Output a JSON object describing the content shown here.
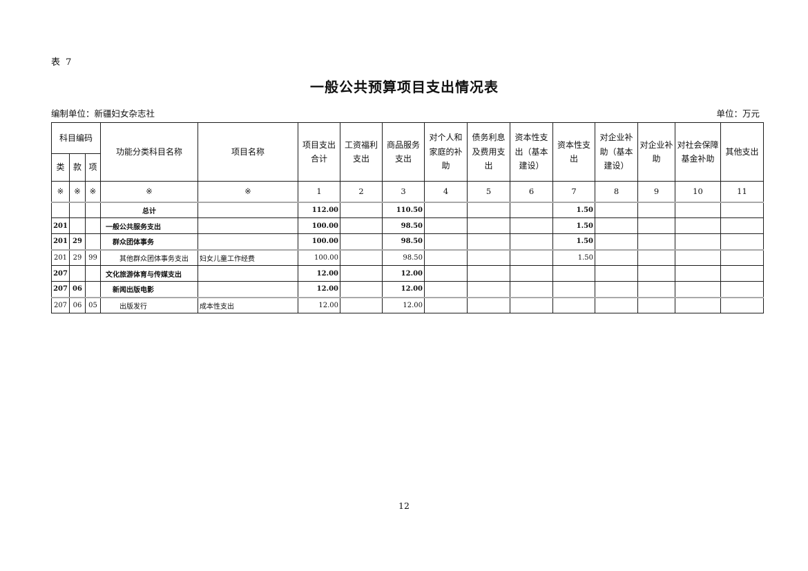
{
  "page": {
    "table_label": "表 7",
    "title": "一般公共预算项目支出情况表",
    "prepared_by": "编制单位：新疆妇女杂志社",
    "unit_note": "单位：万元",
    "page_number": "12"
  },
  "table": {
    "header": {
      "subject_code": "科目编码",
      "code_cols": [
        "类",
        "款",
        "项"
      ],
      "function_name": "功能分类科目名称",
      "project_name": "项目名称",
      "metric_cols": [
        "项目支出合计",
        "工资福利支出",
        "商品服务支出",
        "对个人和家庭的补助",
        "债务利息及费用支出",
        "资本性支出（基本建设）",
        "资本性支出",
        "对企业补助（基本建设）",
        "对企业补助",
        "对社会保障基金补助",
        "其他支出"
      ]
    },
    "marker_row": [
      "※",
      "※",
      "※",
      "※",
      "※",
      "1",
      "2",
      "3",
      "4",
      "5",
      "6",
      "7",
      "8",
      "9",
      "10",
      "11"
    ],
    "rows": [
      {
        "bold": true,
        "center": true,
        "indent": 0,
        "separator": true,
        "cells": [
          "",
          "",
          "",
          "总计",
          "",
          "112.00",
          "",
          "110.50",
          "",
          "",
          "",
          "1.50",
          "",
          "",
          "",
          ""
        ]
      },
      {
        "bold": true,
        "center": false,
        "indent": 0,
        "separator": false,
        "cells": [
          "201",
          "",
          "",
          "一般公共服务支出",
          "",
          "100.00",
          "",
          "98.50",
          "",
          "",
          "",
          "1.50",
          "",
          "",
          "",
          ""
        ]
      },
      {
        "bold": true,
        "center": false,
        "indent": 1,
        "separator": false,
        "cells": [
          "201",
          "29",
          "",
          "群众团体事务",
          "",
          "100.00",
          "",
          "98.50",
          "",
          "",
          "",
          "1.50",
          "",
          "",
          "",
          ""
        ]
      },
      {
        "bold": false,
        "center": false,
        "indent": 2,
        "separator": true,
        "cells": [
          "201",
          "29",
          "99",
          "其他群众团体事务支出",
          "妇女儿童工作经费",
          "100.00",
          "",
          "98.50",
          "",
          "",
          "",
          "1.50",
          "",
          "",
          "",
          ""
        ]
      },
      {
        "bold": true,
        "center": false,
        "indent": 0,
        "separator": false,
        "cells": [
          "207",
          "",
          "",
          "文化旅游体育与传媒支出",
          "",
          "12.00",
          "",
          "12.00",
          "",
          "",
          "",
          "",
          "",
          "",
          "",
          ""
        ]
      },
      {
        "bold": true,
        "center": false,
        "indent": 1,
        "separator": false,
        "cells": [
          "207",
          "06",
          "",
          "新闻出版电影",
          "",
          "12.00",
          "",
          "12.00",
          "",
          "",
          "",
          "",
          "",
          "",
          "",
          ""
        ]
      },
      {
        "bold": false,
        "center": false,
        "indent": 2,
        "separator": true,
        "cells": [
          "207",
          "06",
          "05",
          "出版发行",
          "成本性支出",
          "12.00",
          "",
          "12.00",
          "",
          "",
          "",
          "",
          "",
          "",
          "",
          ""
        ]
      }
    ]
  }
}
